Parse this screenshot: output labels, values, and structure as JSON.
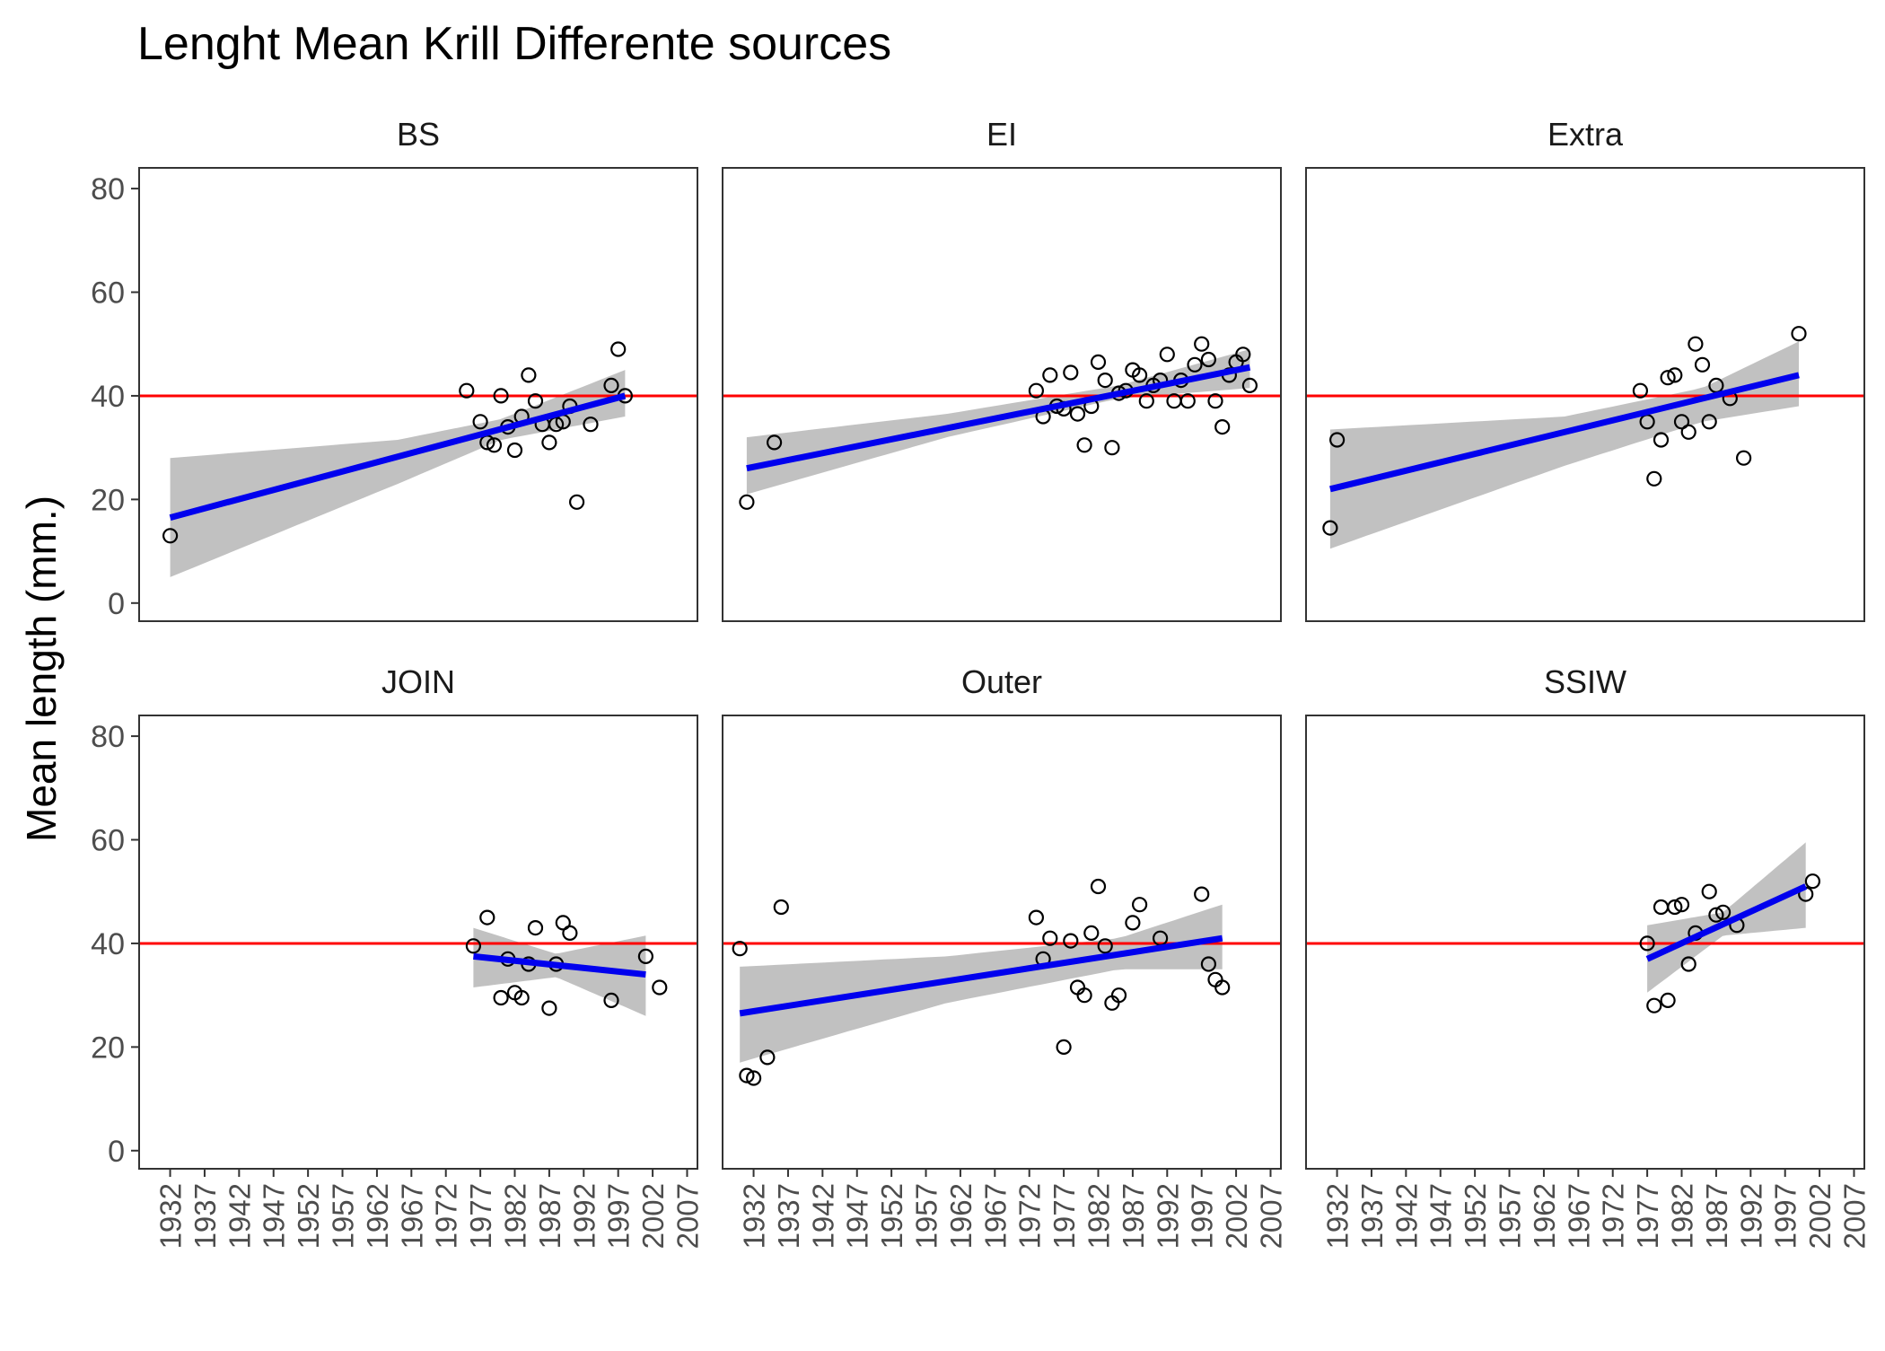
{
  "chart_data": {
    "type": "scatter",
    "title": "Lenght Mean Krill Differente sources",
    "ylabel": "Mean length (mm.)",
    "xlabel": "",
    "ylim": [
      -3.5,
      84
    ],
    "xlim": [
      1927.5,
      2008.5
    ],
    "y_ticks": [
      0,
      20,
      40,
      60,
      80
    ],
    "x_ticks": [
      1932,
      1937,
      1942,
      1947,
      1952,
      1957,
      1962,
      1967,
      1972,
      1977,
      1982,
      1987,
      1992,
      1997,
      2002,
      2007
    ],
    "reference_line": {
      "y": 40,
      "color": "#ff0000"
    },
    "colors": {
      "fit": "#0000ee",
      "ci": "#bebebe",
      "points": "#000000",
      "panel_border": "#333333",
      "axis_text": "#4d4d4d"
    },
    "grid": false,
    "layout": "2x3 facets (shared axes)",
    "panels": [
      {
        "name": "BS",
        "points": [
          [
            1932,
            13
          ],
          [
            1975,
            41
          ],
          [
            1977,
            35
          ],
          [
            1978,
            31
          ],
          [
            1979,
            30.5
          ],
          [
            1980,
            40
          ],
          [
            1981,
            34
          ],
          [
            1982,
            29.5
          ],
          [
            1983,
            36
          ],
          [
            1984,
            44
          ],
          [
            1985,
            39
          ],
          [
            1986,
            34.5
          ],
          [
            1987,
            31
          ],
          [
            1988,
            34.5
          ],
          [
            1989,
            35
          ],
          [
            1990,
            38
          ],
          [
            1991,
            19.5
          ],
          [
            1993,
            34.5
          ],
          [
            1996,
            42
          ],
          [
            1997,
            49
          ],
          [
            1998,
            40
          ]
        ],
        "fit": {
          "x0": 1932,
          "y0": 16.5,
          "x1": 1998,
          "y1": 40
        },
        "ci": {
          "x": [
            1932,
            1965,
            1980,
            1998
          ],
          "lower": [
            5,
            23,
            31.5,
            36
          ],
          "upper": [
            28,
            31.5,
            35.5,
            45
          ]
        }
      },
      {
        "name": "EI",
        "points": [
          [
            1931,
            19.5
          ],
          [
            1935,
            31
          ],
          [
            1973,
            41
          ],
          [
            1974,
            36
          ],
          [
            1975,
            44
          ],
          [
            1976,
            38
          ],
          [
            1977,
            37.5
          ],
          [
            1978,
            44.5
          ],
          [
            1979,
            36.5
          ],
          [
            1980,
            30.5
          ],
          [
            1981,
            38
          ],
          [
            1982,
            46.5
          ],
          [
            1983,
            43
          ],
          [
            1984,
            30
          ],
          [
            1985,
            40.5
          ],
          [
            1986,
            41
          ],
          [
            1987,
            45
          ],
          [
            1988,
            44
          ],
          [
            1989,
            39
          ],
          [
            1990,
            42
          ],
          [
            1991,
            43
          ],
          [
            1992,
            48
          ],
          [
            1993,
            39
          ],
          [
            1994,
            43
          ],
          [
            1995,
            39
          ],
          [
            1996,
            46
          ],
          [
            1997,
            50
          ],
          [
            1998,
            47
          ],
          [
            1999,
            39
          ],
          [
            2000,
            34
          ],
          [
            2001,
            44
          ],
          [
            2002,
            46.5
          ],
          [
            2003,
            48
          ],
          [
            2004,
            42
          ]
        ],
        "fit": {
          "x0": 1931,
          "y0": 26,
          "x1": 2004,
          "y1": 45.5
        },
        "ci": {
          "x": [
            1931,
            1960,
            1985,
            2004
          ],
          "lower": [
            21,
            32,
            39.5,
            41.5
          ],
          "upper": [
            32,
            36.5,
            42,
            49
          ]
        }
      },
      {
        "name": "Extra",
        "points": [
          [
            1931,
            14.5
          ],
          [
            1932,
            31.5
          ],
          [
            1976,
            41
          ],
          [
            1977,
            35
          ],
          [
            1978,
            24
          ],
          [
            1979,
            31.5
          ],
          [
            1980,
            43.5
          ],
          [
            1981,
            44
          ],
          [
            1982,
            35
          ],
          [
            1983,
            33
          ],
          [
            1984,
            50
          ],
          [
            1985,
            46
          ],
          [
            1986,
            35
          ],
          [
            1987,
            42
          ],
          [
            1989,
            39.5
          ],
          [
            1991,
            28
          ],
          [
            1999,
            52
          ]
        ],
        "fit": {
          "x0": 1931,
          "y0": 22,
          "x1": 1999,
          "y1": 44
        },
        "ci": {
          "x": [
            1931,
            1965,
            1985,
            1999
          ],
          "lower": [
            10.5,
            26.5,
            35,
            38
          ],
          "upper": [
            33.5,
            36,
            41.5,
            50.5
          ]
        }
      },
      {
        "name": "JOIN",
        "points": [
          [
            1976,
            39.5
          ],
          [
            1978,
            45
          ],
          [
            1980,
            29.5
          ],
          [
            1981,
            37
          ],
          [
            1982,
            30.5
          ],
          [
            1983,
            29.5
          ],
          [
            1984,
            36
          ],
          [
            1985,
            43
          ],
          [
            1987,
            27.5
          ],
          [
            1988,
            36
          ],
          [
            1989,
            44
          ],
          [
            1990,
            42
          ],
          [
            1996,
            29
          ],
          [
            2001,
            37.5
          ],
          [
            2003,
            31.5
          ]
        ],
        "fit": {
          "x0": 1976,
          "y0": 37.5,
          "x1": 2001,
          "y1": 34
        },
        "ci": {
          "x": [
            1976,
            1988,
            2001
          ],
          "lower": [
            31.5,
            33.5,
            26
          ],
          "upper": [
            43,
            38,
            41.5
          ]
        }
      },
      {
        "name": "Outer",
        "points": [
          [
            1930,
            39
          ],
          [
            1931,
            14.5
          ],
          [
            1932,
            14
          ],
          [
            1934,
            18
          ],
          [
            1936,
            47
          ],
          [
            1973,
            45
          ],
          [
            1974,
            37
          ],
          [
            1975,
            41
          ],
          [
            1977,
            20
          ],
          [
            1978,
            40.5
          ],
          [
            1979,
            31.5
          ],
          [
            1980,
            30
          ],
          [
            1981,
            42
          ],
          [
            1982,
            51
          ],
          [
            1983,
            39.5
          ],
          [
            1984,
            28.5
          ],
          [
            1985,
            30
          ],
          [
            1987,
            44
          ],
          [
            1988,
            47.5
          ],
          [
            1991,
            41
          ],
          [
            1997,
            49.5
          ],
          [
            1998,
            36
          ],
          [
            1999,
            33
          ],
          [
            2000,
            31.5
          ]
        ],
        "fit": {
          "x0": 1930,
          "y0": 26.5,
          "x1": 2000,
          "y1": 41
        },
        "ci": {
          "x": [
            1930,
            1960,
            1985,
            2000
          ],
          "lower": [
            17,
            28.5,
            35,
            35
          ],
          "upper": [
            35.5,
            37.5,
            41,
            47.5
          ]
        }
      },
      {
        "name": "SSIW",
        "points": [
          [
            1977,
            40
          ],
          [
            1978,
            28
          ],
          [
            1979,
            47
          ],
          [
            1980,
            29
          ],
          [
            1981,
            47
          ],
          [
            1982,
            47.5
          ],
          [
            1983,
            36
          ],
          [
            1984,
            42
          ],
          [
            1986,
            50
          ],
          [
            1987,
            45.5
          ],
          [
            1988,
            46
          ],
          [
            1990,
            43.5
          ],
          [
            2000,
            49.5
          ],
          [
            2001,
            52
          ]
        ],
        "fit": {
          "x0": 1977,
          "y0": 37,
          "x1": 2000,
          "y1": 51
        },
        "ci": {
          "x": [
            1977,
            1988,
            2000
          ],
          "lower": [
            30.5,
            41.5,
            43
          ],
          "upper": [
            43.5,
            46,
            59.5
          ]
        }
      }
    ]
  }
}
